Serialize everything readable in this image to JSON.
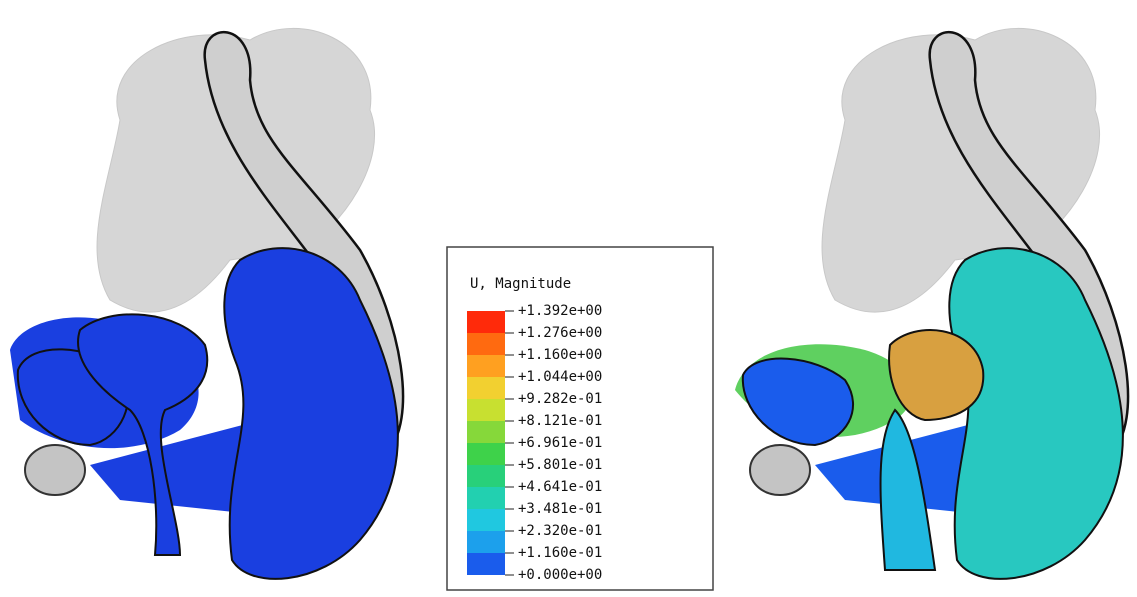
{
  "legend": {
    "title": "U, Magnitude",
    "labels": [
      "+1.392e+00",
      "+1.276e+00",
      "+1.160e+00",
      "+1.044e+00",
      "+9.282e-01",
      "+8.121e-01",
      "+6.961e-01",
      "+5.801e-01",
      "+4.641e-01",
      "+3.481e-01",
      "+2.320e-01",
      "+1.160e-01",
      "+0.000e+00"
    ],
    "colors": [
      "#ff2a0a",
      "#ff6a10",
      "#ffa020",
      "#f2d030",
      "#c8e030",
      "#86d83a",
      "#3ed24a",
      "#28d07a",
      "#22d0b0",
      "#20c8e0",
      "#1ca0ec",
      "#1a5cec"
    ]
  }
}
